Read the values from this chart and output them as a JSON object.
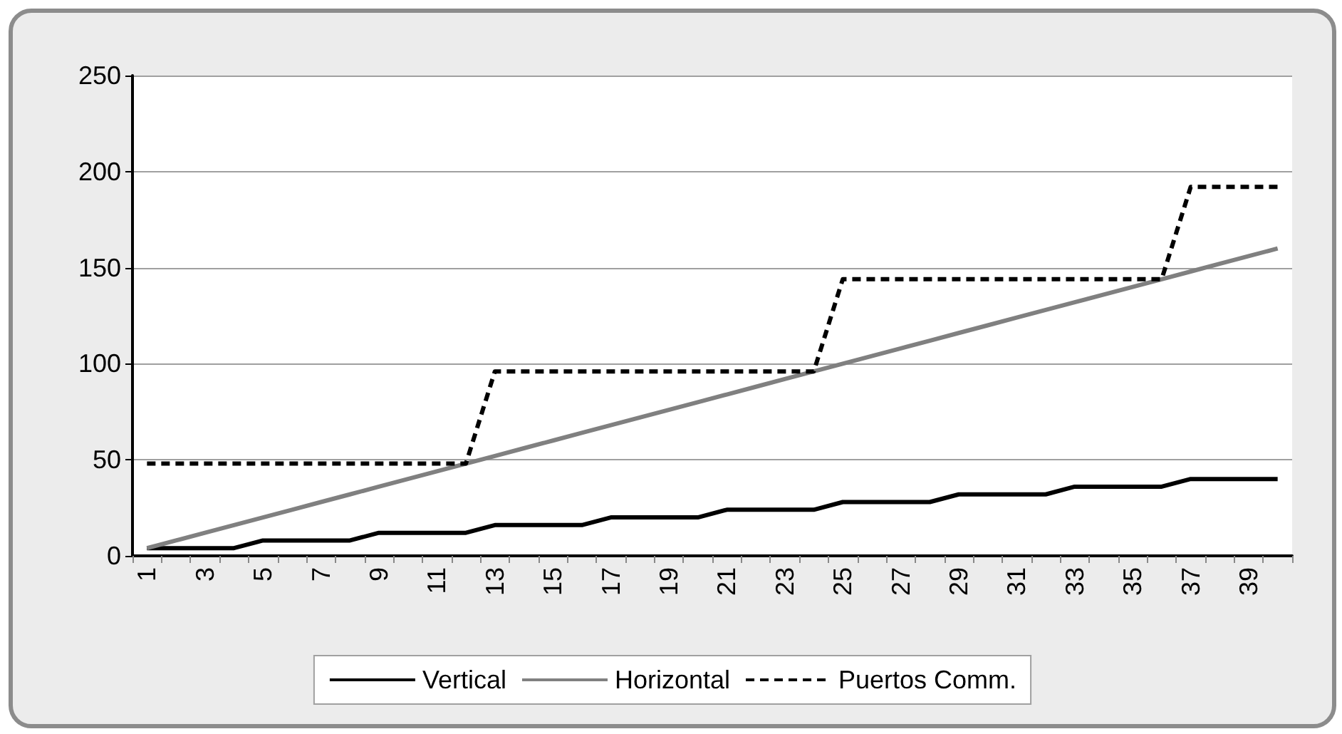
{
  "chart_data": {
    "type": "line",
    "categories": [
      "1",
      null,
      "3",
      null,
      "5",
      null,
      "7",
      null,
      "9",
      null,
      "11",
      null,
      "13",
      null,
      "15",
      null,
      "17",
      null,
      "19",
      null,
      "21",
      null,
      "23",
      null,
      "25",
      null,
      "27",
      null,
      "29",
      null,
      "31",
      null,
      "33",
      null,
      "35",
      null,
      "37",
      null,
      "39",
      null
    ],
    "series": [
      {
        "name": "Vertical",
        "color": "#000000",
        "line_style": "solid",
        "values": [
          4,
          4,
          4,
          4,
          8,
          8,
          8,
          8,
          12,
          12,
          12,
          12,
          16,
          16,
          16,
          16,
          20,
          20,
          20,
          20,
          24,
          24,
          24,
          24,
          28,
          28,
          28,
          28,
          32,
          32,
          32,
          32,
          36,
          36,
          36,
          36,
          40,
          40,
          40,
          40
        ]
      },
      {
        "name": "Horizontal",
        "color": "#808080",
        "line_style": "solid",
        "values": [
          4,
          8,
          12,
          16,
          20,
          24,
          28,
          32,
          36,
          40,
          44,
          48,
          52,
          56,
          60,
          64,
          68,
          72,
          76,
          80,
          84,
          88,
          92,
          96,
          100,
          104,
          108,
          112,
          116,
          120,
          124,
          128,
          132,
          136,
          140,
          144,
          148,
          152,
          156,
          160
        ]
      },
      {
        "name": "Puertos Comm.",
        "color": "#000000",
        "line_style": "dashed",
        "values": [
          48,
          48,
          48,
          48,
          48,
          48,
          48,
          48,
          48,
          48,
          48,
          48,
          96,
          96,
          96,
          96,
          96,
          96,
          96,
          96,
          96,
          96,
          96,
          96,
          144,
          144,
          144,
          144,
          144,
          144,
          144,
          144,
          144,
          144,
          144,
          144,
          192,
          192,
          192,
          192
        ]
      }
    ],
    "ylim": [
      0,
      250
    ],
    "yticks": [
      0,
      50,
      100,
      150,
      200,
      250
    ],
    "grid": "y",
    "legend": "bottom",
    "marker": "none"
  }
}
